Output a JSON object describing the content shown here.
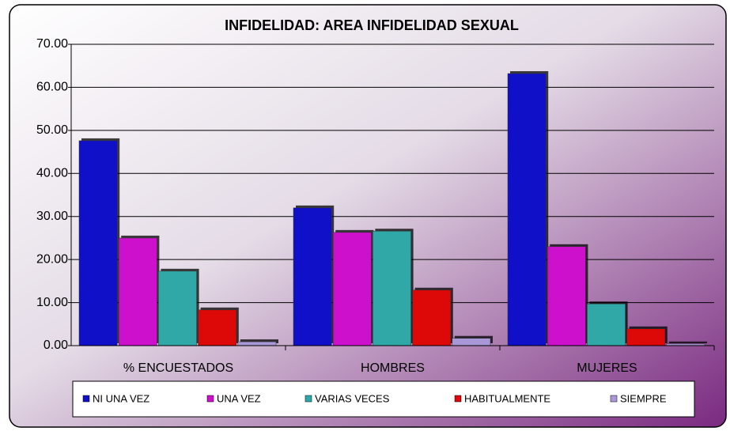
{
  "chart_data": {
    "type": "bar",
    "title": "INFIDELIDAD: AREA INFIDELIDAD SEXUAL",
    "categories": [
      "% ENCUESTADOS",
      "HOMBRES",
      "MUJERES"
    ],
    "series": [
      {
        "name": "NI UNA VEZ",
        "color": "#1010c8",
        "values": [
          47.6,
          32.0,
          63.2
        ]
      },
      {
        "name": "UNA VEZ",
        "color": "#cc10cc",
        "values": [
          25.0,
          26.3,
          23.0
        ]
      },
      {
        "name": "VARIAS VECES",
        "color": "#30a8a8",
        "values": [
          17.3,
          26.6,
          9.7
        ]
      },
      {
        "name": "HABITUALMENTE",
        "color": "#dd0808",
        "values": [
          8.3,
          12.9,
          3.9
        ]
      },
      {
        "name": "SIEMPRE",
        "color": "#a898d8",
        "values": [
          0.9,
          1.7,
          0.4
        ]
      }
    ],
    "ylim": [
      0,
      70
    ],
    "yticks": [
      {
        "value": 0,
        "label": "0.00"
      },
      {
        "value": 10,
        "label": "10.00"
      },
      {
        "value": 20,
        "label": "20.00"
      },
      {
        "value": 30,
        "label": "30.00"
      },
      {
        "value": 40,
        "label": "40.00"
      },
      {
        "value": 50,
        "label": "50.00"
      },
      {
        "value": 60,
        "label": "60.00"
      },
      {
        "value": 70,
        "label": "70.00"
      }
    ],
    "grid": true
  }
}
